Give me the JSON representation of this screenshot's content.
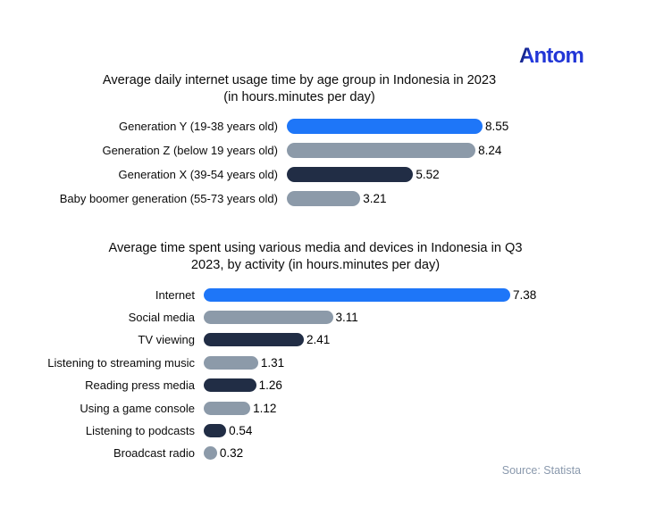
{
  "brand": {
    "logo_text": "Antom",
    "logo_first_letter": "A",
    "logo_rest": "ntom"
  },
  "source_text": "Source: Statista",
  "colors": {
    "blue": "#1e76f8",
    "gray": "#8c9aa9",
    "navy": "#212d45",
    "logo_blue": "#2236d6",
    "source_gray": "#8a99ad"
  },
  "chart_data": [
    {
      "type": "bar",
      "orientation": "horizontal",
      "title": "Average daily internet usage time by age group in Indonesia in 2023 (in hours.minutes per day)",
      "title_lines": [
        "Average daily internet usage time by age group in Indonesia in 2023",
        "(in hours.minutes per day)"
      ],
      "unit": "hours.minutes per day",
      "categories": [
        "Generation Y (19-38 years old)",
        "Generation Z (below 19 years old)",
        "Generation X (39-54 years old)",
        "Baby boomer generation (55-73 years old)"
      ],
      "values": [
        8.55,
        8.24,
        5.52,
        3.21
      ],
      "value_labels": [
        "8.55",
        "8.24",
        "5.52",
        "3.21"
      ],
      "bar_colors": [
        "blue",
        "gray",
        "navy",
        "gray"
      ],
      "xlim": [
        0,
        8.55
      ],
      "grid": false,
      "legend": false
    },
    {
      "type": "bar",
      "orientation": "horizontal",
      "title": "Average time spent using various media and devices in Indonesia in Q3 2023, by activity (in hours.minutes per day)",
      "title_lines": [
        "Average time spent using various media and devices in Indonesia in Q3",
        "2023, by activity (in hours.minutes per day)"
      ],
      "unit": "hours.minutes per day",
      "categories": [
        "Internet",
        "Social media",
        "TV viewing",
        "Listening to streaming music",
        "Reading press media",
        "Using a game console",
        "Listening to podcasts",
        "Broadcast radio"
      ],
      "values": [
        7.38,
        3.11,
        2.41,
        1.31,
        1.26,
        1.12,
        0.54,
        0.32
      ],
      "value_labels": [
        "7.38",
        "3.11",
        "2.41",
        "1.31",
        "1.26",
        "1.12",
        "0.54",
        "0.32"
      ],
      "bar_colors": [
        "blue",
        "gray",
        "navy",
        "gray",
        "navy",
        "gray",
        "navy",
        "gray"
      ],
      "xlim": [
        0,
        7.38
      ],
      "grid": false,
      "legend": false
    }
  ]
}
